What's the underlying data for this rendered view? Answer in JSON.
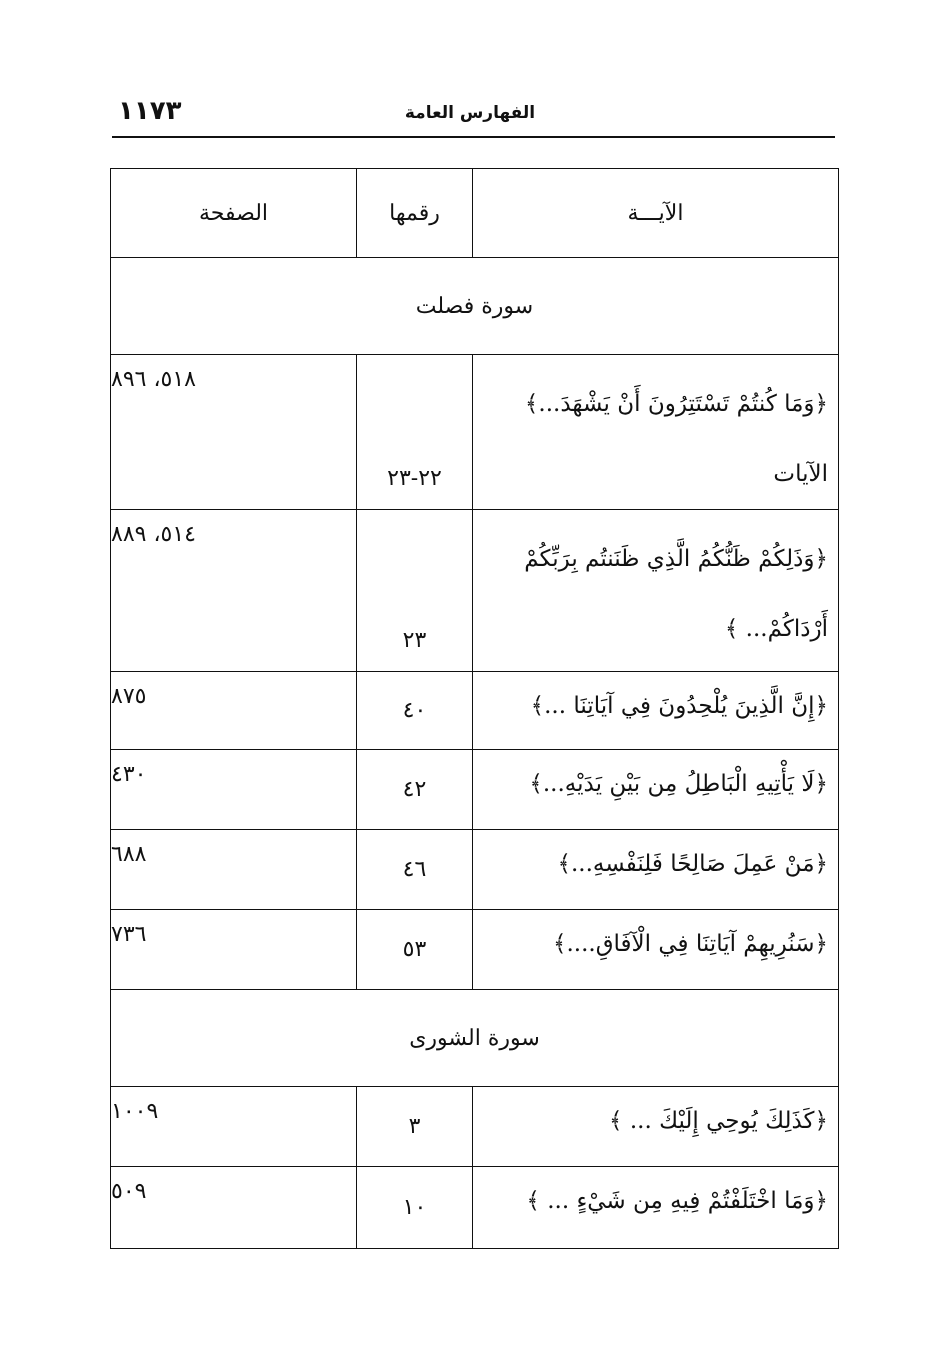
{
  "header": {
    "page_number": "١١٧٣",
    "running_title": "الفهارس العامة"
  },
  "table": {
    "columns": [
      "الآيـــة",
      "رقمها",
      "الصفحة"
    ],
    "sections": [
      {
        "surah": "سورة فصلت",
        "rows": [
          {
            "verse": "﴿وَمَا كُنتُمْ تَسْتَتِرُونَ أَنْ يَشْهَدَ...﴾ الآيات",
            "number": "٢٢-٢٣",
            "pages": "٥١٨، ٨٩٦"
          },
          {
            "verse": "﴿وَذَلِكُمْ ظَنُّكُمُ الَّذِي ظَنَنتُم بِرَبِّكُمْ أَرْدَاكُمْ... ﴾",
            "number": "٢٣",
            "pages": "٥١٤، ٨٨٩"
          },
          {
            "verse": "﴿إِنَّ الَّذِينَ يُلْحِدُونَ فِي آيَاتِنَا ...﴾",
            "number": "٤٠",
            "pages": "٨٧٥"
          },
          {
            "verse": "﴿لَا يَأْتِيهِ الْبَاطِلُ مِن بَيْنِ يَدَيْهِ...﴾",
            "number": "٤٢",
            "pages": "٤٣٠"
          },
          {
            "verse": "﴿مَنْ عَمِلَ صَالِحًا فَلِنَفْسِهِ...﴾",
            "number": "٤٦",
            "pages": "٦٨٨"
          },
          {
            "verse": "﴿سَنُرِيهِمْ آيَاتِنَا فِي الْآفَاقِ....﴾",
            "number": "٥٣",
            "pages": "٧٣٦"
          }
        ]
      },
      {
        "surah": "سورة الشورى",
        "rows": [
          {
            "verse": "﴿كَذَلِكَ يُوحِي إِلَيْكَ ... ﴾",
            "number": "٣",
            "pages": "١٠٠٩"
          },
          {
            "verse": "﴿وَمَا اخْتَلَفْتُمْ فِيهِ مِن شَيْءٍ ... ﴾",
            "number": "١٠",
            "pages": "٥٠٩"
          }
        ]
      }
    ]
  }
}
